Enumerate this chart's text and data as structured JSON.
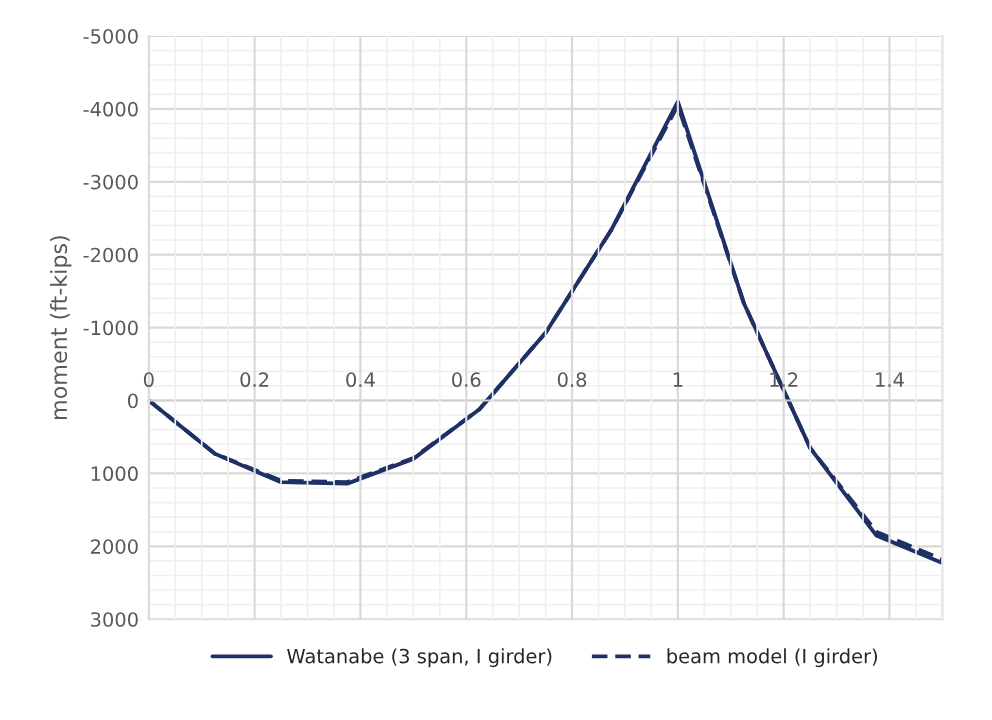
{
  "chart_data": {
    "type": "line",
    "ylabel": "moment (ft-kips)",
    "x": [
      0,
      0.125,
      0.25,
      0.375,
      0.5,
      0.625,
      0.75,
      0.875,
      1,
      1.125,
      1.25,
      1.375,
      1.5
    ],
    "series": [
      {
        "name": "Watanabe (3 span, I girder)",
        "color": "#1f3066",
        "line_style": "solid",
        "values": [
          0,
          730,
          1120,
          1140,
          800,
          120,
          -930,
          -2350,
          -4100,
          -1330,
          650,
          1850,
          2230
        ]
      },
      {
        "name": "beam model (I girder)",
        "color": "#1f3066",
        "line_style": "dashed",
        "values": [
          0,
          730,
          1100,
          1120,
          790,
          120,
          -930,
          -2350,
          -4050,
          -1330,
          650,
          1800,
          2180
        ]
      }
    ],
    "xlim": [
      0,
      1.5
    ],
    "xticks": [
      0,
      0.2,
      0.4,
      0.6,
      0.8,
      1,
      1.2,
      1.4
    ],
    "ylim": [
      3000,
      -5000
    ],
    "yticks": [
      -5000,
      -4000,
      -3000,
      -2000,
      -1000,
      0,
      1000,
      2000,
      3000
    ],
    "grid": true,
    "legend": "bottom",
    "marker": "none"
  }
}
